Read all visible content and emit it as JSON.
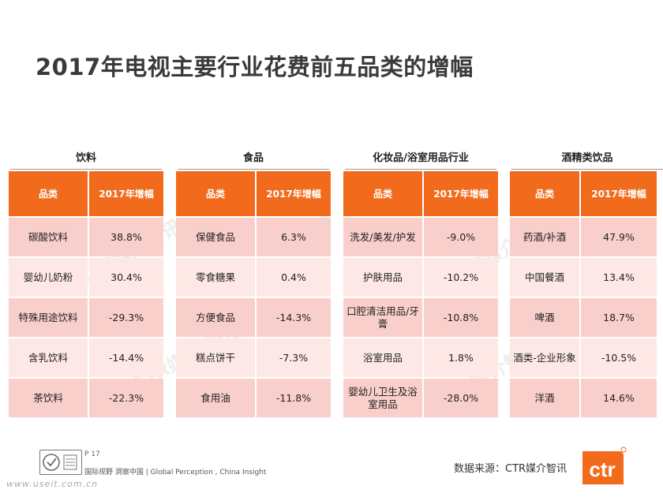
{
  "title": "2017年电视主要行业花费前五品类的增幅",
  "header": {
    "col1": "品类",
    "col2": "2017年增幅"
  },
  "groups": [
    {
      "name": "饮料",
      "rows": [
        {
          "category": "碳酸饮料",
          "growth": "38.8%"
        },
        {
          "category": "婴幼儿奶粉",
          "growth": "30.4%"
        },
        {
          "category": "特殊用途饮料",
          "growth": "-29.3%"
        },
        {
          "category": "含乳饮料",
          "growth": "-14.4%"
        },
        {
          "category": "茶饮料",
          "growth": "-22.3%"
        }
      ]
    },
    {
      "name": "食品",
      "rows": [
        {
          "category": "保健食品",
          "growth": "6.3%"
        },
        {
          "category": "零食糖果",
          "growth": "0.4%"
        },
        {
          "category": "方便食品",
          "growth": "-14.3%"
        },
        {
          "category": "糕点饼干",
          "growth": "-7.3%"
        },
        {
          "category": "食用油",
          "growth": "-11.8%"
        }
      ]
    },
    {
      "name": "化妆品/浴室用品行业",
      "rows": [
        {
          "category": "洗发/美发/护发",
          "growth": "-9.0%"
        },
        {
          "category": "护肤用品",
          "growth": "-10.2%"
        },
        {
          "category": "口腔清洁用品/牙膏",
          "growth": "-10.8%"
        },
        {
          "category": "浴室用品",
          "growth": "1.8%"
        },
        {
          "category": "婴幼儿卫生及浴室用品",
          "growth": "-28.0%"
        }
      ]
    },
    {
      "name": "酒精类饮品",
      "rows": [
        {
          "category": "药酒/补酒",
          "growth": "47.9%"
        },
        {
          "category": "中国餐酒",
          "growth": "13.4%"
        },
        {
          "category": "啤酒",
          "growth": "18.7%"
        },
        {
          "category": "酒类-企业形象",
          "growth": "-10.5%"
        },
        {
          "category": "洋酒",
          "growth": "14.6%"
        }
      ]
    }
  ],
  "watermark": "CTR媒介智讯",
  "footer": {
    "page": "P 17",
    "tagline": "国际视野  洞察中国 | Global Perception , China Insight",
    "source": "数据来源：CTR媒介智讯",
    "url": "www.useit.com.cn",
    "logo_text": "ctr"
  },
  "colors": {
    "accent": "#f26b1d",
    "row_odd": "#f9cfcb",
    "row_even": "#fde8e5"
  }
}
